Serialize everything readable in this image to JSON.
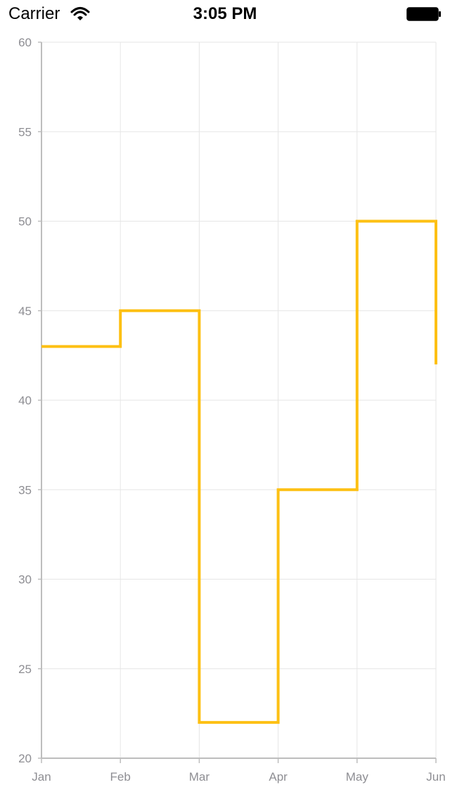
{
  "status_bar": {
    "carrier": "Carrier",
    "time": "3:05 PM",
    "wifi_icon": "wifi-icon",
    "battery_icon": "battery-icon"
  },
  "colors": {
    "series": "#fdc013",
    "axis": "#bdbdbd",
    "grid": "#e6e6e6",
    "tick_text": "#8e8e93"
  },
  "chart_data": {
    "type": "line",
    "style": "step",
    "title": "",
    "xlabel": "",
    "ylabel": "",
    "categories": [
      "Jan",
      "Feb",
      "Mar",
      "Apr",
      "May",
      "Jun"
    ],
    "series": [
      {
        "values": [
          43,
          45,
          22,
          35,
          50,
          42
        ]
      }
    ],
    "ylim": [
      20,
      60
    ],
    "yticks": [
      20,
      25,
      30,
      35,
      40,
      45,
      50,
      55,
      60
    ],
    "grid": true,
    "legend": "none"
  }
}
